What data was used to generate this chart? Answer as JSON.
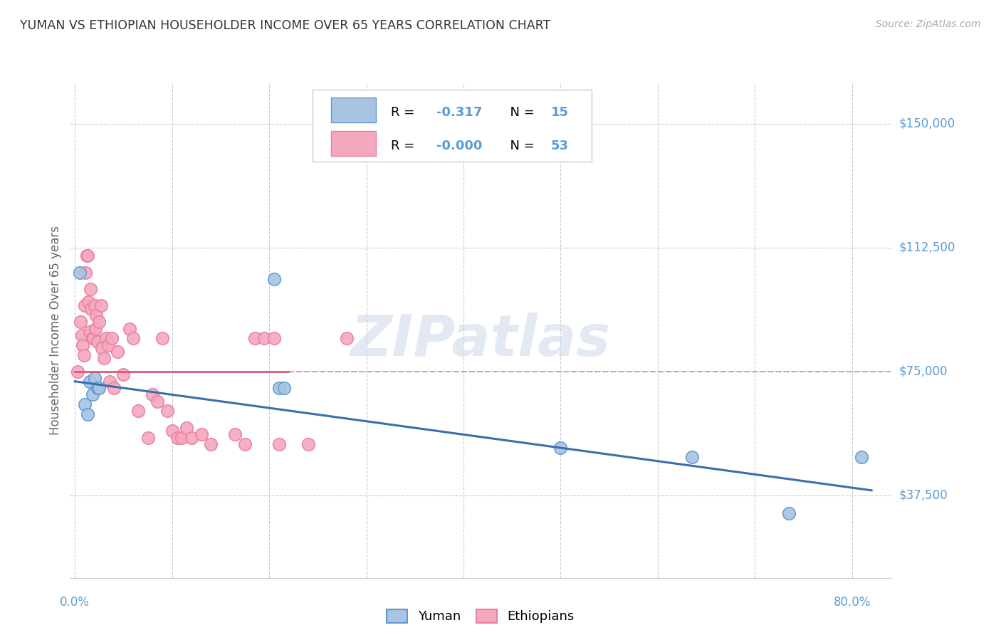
{
  "title": "YUMAN VS ETHIOPIAN HOUSEHOLDER INCOME OVER 65 YEARS CORRELATION CHART",
  "source": "Source: ZipAtlas.com",
  "ylabel": "Householder Income Over 65 years",
  "ytick_labels": [
    "$37,500",
    "$75,000",
    "$112,500",
    "$150,000"
  ],
  "ytick_values": [
    37500,
    75000,
    112500,
    150000
  ],
  "ymin": 12500,
  "ymax": 162500,
  "xmin": -0.005,
  "xmax": 0.84,
  "watermark": "ZIPatlas",
  "yuman_color": "#a8c4e0",
  "ethiopian_color": "#f4a8be",
  "yuman_edge_color": "#5b9bd5",
  "ethiopian_edge_color": "#e87fa0",
  "trend_yuman_color": "#3a6fad",
  "trend_ethiopian_color": "#e05878",
  "grid_color": "#cccccc",
  "background_color": "#ffffff",
  "title_color": "#333333",
  "axis_label_color": "#5b9bd5",
  "source_color": "#aaaaaa",
  "yuman_x": [
    0.005,
    0.01,
    0.013,
    0.015,
    0.018,
    0.02,
    0.023,
    0.025,
    0.205,
    0.21,
    0.215,
    0.5,
    0.635,
    0.735,
    0.81
  ],
  "yuman_y": [
    105000,
    65000,
    62000,
    72000,
    68000,
    73000,
    70000,
    70000,
    103000,
    70000,
    70000,
    52000,
    49000,
    32000,
    49000
  ],
  "ethiopian_x": [
    0.003,
    0.006,
    0.007,
    0.008,
    0.009,
    0.01,
    0.011,
    0.012,
    0.013,
    0.014,
    0.015,
    0.016,
    0.017,
    0.018,
    0.019,
    0.02,
    0.021,
    0.022,
    0.023,
    0.025,
    0.027,
    0.028,
    0.03,
    0.032,
    0.034,
    0.036,
    0.038,
    0.04,
    0.044,
    0.05,
    0.056,
    0.06,
    0.065,
    0.075,
    0.08,
    0.085,
    0.09,
    0.095,
    0.1,
    0.105,
    0.11,
    0.115,
    0.12,
    0.13,
    0.14,
    0.165,
    0.175,
    0.185,
    0.195,
    0.205,
    0.21,
    0.24,
    0.28
  ],
  "ethiopian_y": [
    75000,
    90000,
    86000,
    83000,
    80000,
    95000,
    105000,
    110000,
    110000,
    96000,
    87000,
    100000,
    94000,
    85000,
    85000,
    95000,
    88000,
    92000,
    84000,
    90000,
    95000,
    82000,
    79000,
    85000,
    83000,
    72000,
    85000,
    70000,
    81000,
    74000,
    88000,
    85000,
    63000,
    55000,
    68000,
    66000,
    85000,
    63000,
    57000,
    55000,
    55000,
    58000,
    55000,
    56000,
    53000,
    56000,
    53000,
    85000,
    85000,
    85000,
    53000,
    53000,
    85000
  ],
  "trend_yuman_x0": 0.0,
  "trend_yuman_y0": 72000,
  "trend_yuman_x1": 0.82,
  "trend_yuman_y1": 39000,
  "trend_ethiopian_y": 75000,
  "trend_ethiopian_x0": 0.0,
  "trend_ethiopian_x1": 0.84,
  "x_ticks": [
    0.0,
    0.1,
    0.2,
    0.3,
    0.4,
    0.5,
    0.6,
    0.7,
    0.8
  ]
}
